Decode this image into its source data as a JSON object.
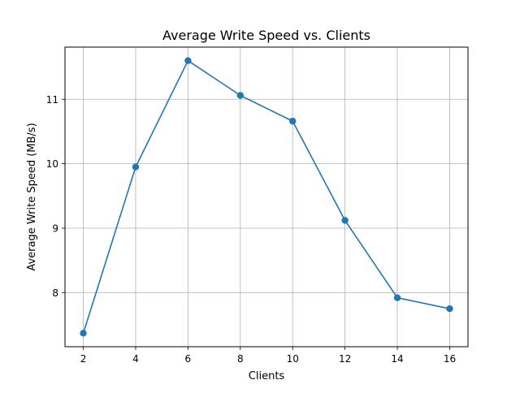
{
  "chart_data": {
    "type": "line",
    "title": "Average Write Speed vs. Clients",
    "xlabel": "Clients",
    "ylabel": "Average Write Speed (MB/s)",
    "x": [
      2,
      4,
      6,
      8,
      10,
      12,
      14,
      16
    ],
    "series": [
      {
        "values": [
          7.37,
          9.95,
          11.6,
          11.06,
          10.66,
          9.12,
          7.92,
          7.75
        ],
        "color": "#1f77b4",
        "marker": "circle"
      }
    ],
    "xlim": [
      1.3,
      16.7
    ],
    "ylim": [
      7.16,
      11.81
    ],
    "xticks": [
      2,
      4,
      6,
      8,
      10,
      12,
      14,
      16
    ],
    "yticks": [
      8,
      9,
      10,
      11
    ],
    "xtick_labels": [
      "2",
      "4",
      "6",
      "8",
      "10",
      "12",
      "14",
      "16"
    ],
    "ytick_labels": [
      "8",
      "9",
      "10",
      "11"
    ],
    "grid": true,
    "legend": false
  }
}
